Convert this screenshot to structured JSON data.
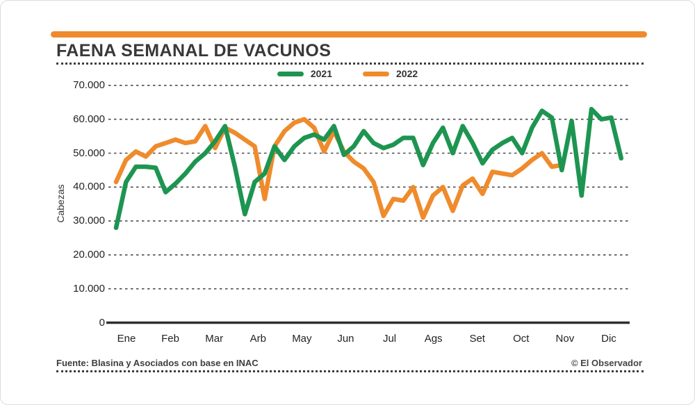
{
  "page": {
    "title": "FAENA SEMANAL DE VACUNOS",
    "footer_source": "Fuente: Blasina y Asociados con base en INAC",
    "footer_credit": "© El Observador",
    "accent_color": "#ef8b2c"
  },
  "chart_data": {
    "type": "line",
    "title": "FAENA SEMANAL DE VACUNOS",
    "xlabel": "",
    "ylabel": "Cabezas",
    "x_unit": "semana",
    "months": [
      "Ene",
      "Feb",
      "Mar",
      "Arb",
      "May",
      "Jun",
      "Jul",
      "Ags",
      "Set",
      "Oct",
      "Nov",
      "Dic"
    ],
    "y_ticks": [
      "70.000",
      "60.000",
      "50.000",
      "40.000",
      "30.000",
      "20.000",
      "10.000",
      "0"
    ],
    "y_tick_values": [
      70000,
      60000,
      50000,
      40000,
      30000,
      20000,
      10000,
      0
    ],
    "grid_values": [
      10000,
      20000,
      30000,
      40000,
      50000,
      60000,
      70000
    ],
    "ylim": [
      0,
      70000
    ],
    "grid": "horizontal-dashed",
    "legend_position": "top-center",
    "series": [
      {
        "name": "2021",
        "color": "#1d9551",
        "values": [
          28000,
          41500,
          46000,
          46000,
          45700,
          38500,
          41000,
          44000,
          47500,
          50000,
          53500,
          58000,
          46000,
          32000,
          41500,
          44000,
          52000,
          48000,
          52000,
          54500,
          55500,
          54000,
          58000,
          49500,
          52000,
          56500,
          53000,
          51500,
          52500,
          54500,
          54500,
          46500,
          53000,
          57500,
          50000,
          58000,
          53000,
          47000,
          51000,
          53000,
          54500,
          50000,
          57500,
          62500,
          60500,
          45000,
          59500,
          37500,
          63000,
          60000,
          60500,
          48500
        ]
      },
      {
        "name": "2022",
        "color": "#ef8b2c",
        "values": [
          41500,
          48000,
          50500,
          49000,
          52000,
          53000,
          54000,
          53000,
          53500,
          58000,
          51500,
          57500,
          56000,
          54000,
          52000,
          36500,
          52000,
          56500,
          59000,
          60000,
          57500,
          50500,
          56500,
          50500,
          47500,
          45500,
          41500,
          31500,
          36500,
          36000,
          40000,
          31000,
          37500,
          40000,
          33000,
          40500,
          42500,
          38000,
          44500,
          44000,
          43500,
          45500,
          48000,
          50000,
          46000,
          46500
        ]
      }
    ]
  }
}
